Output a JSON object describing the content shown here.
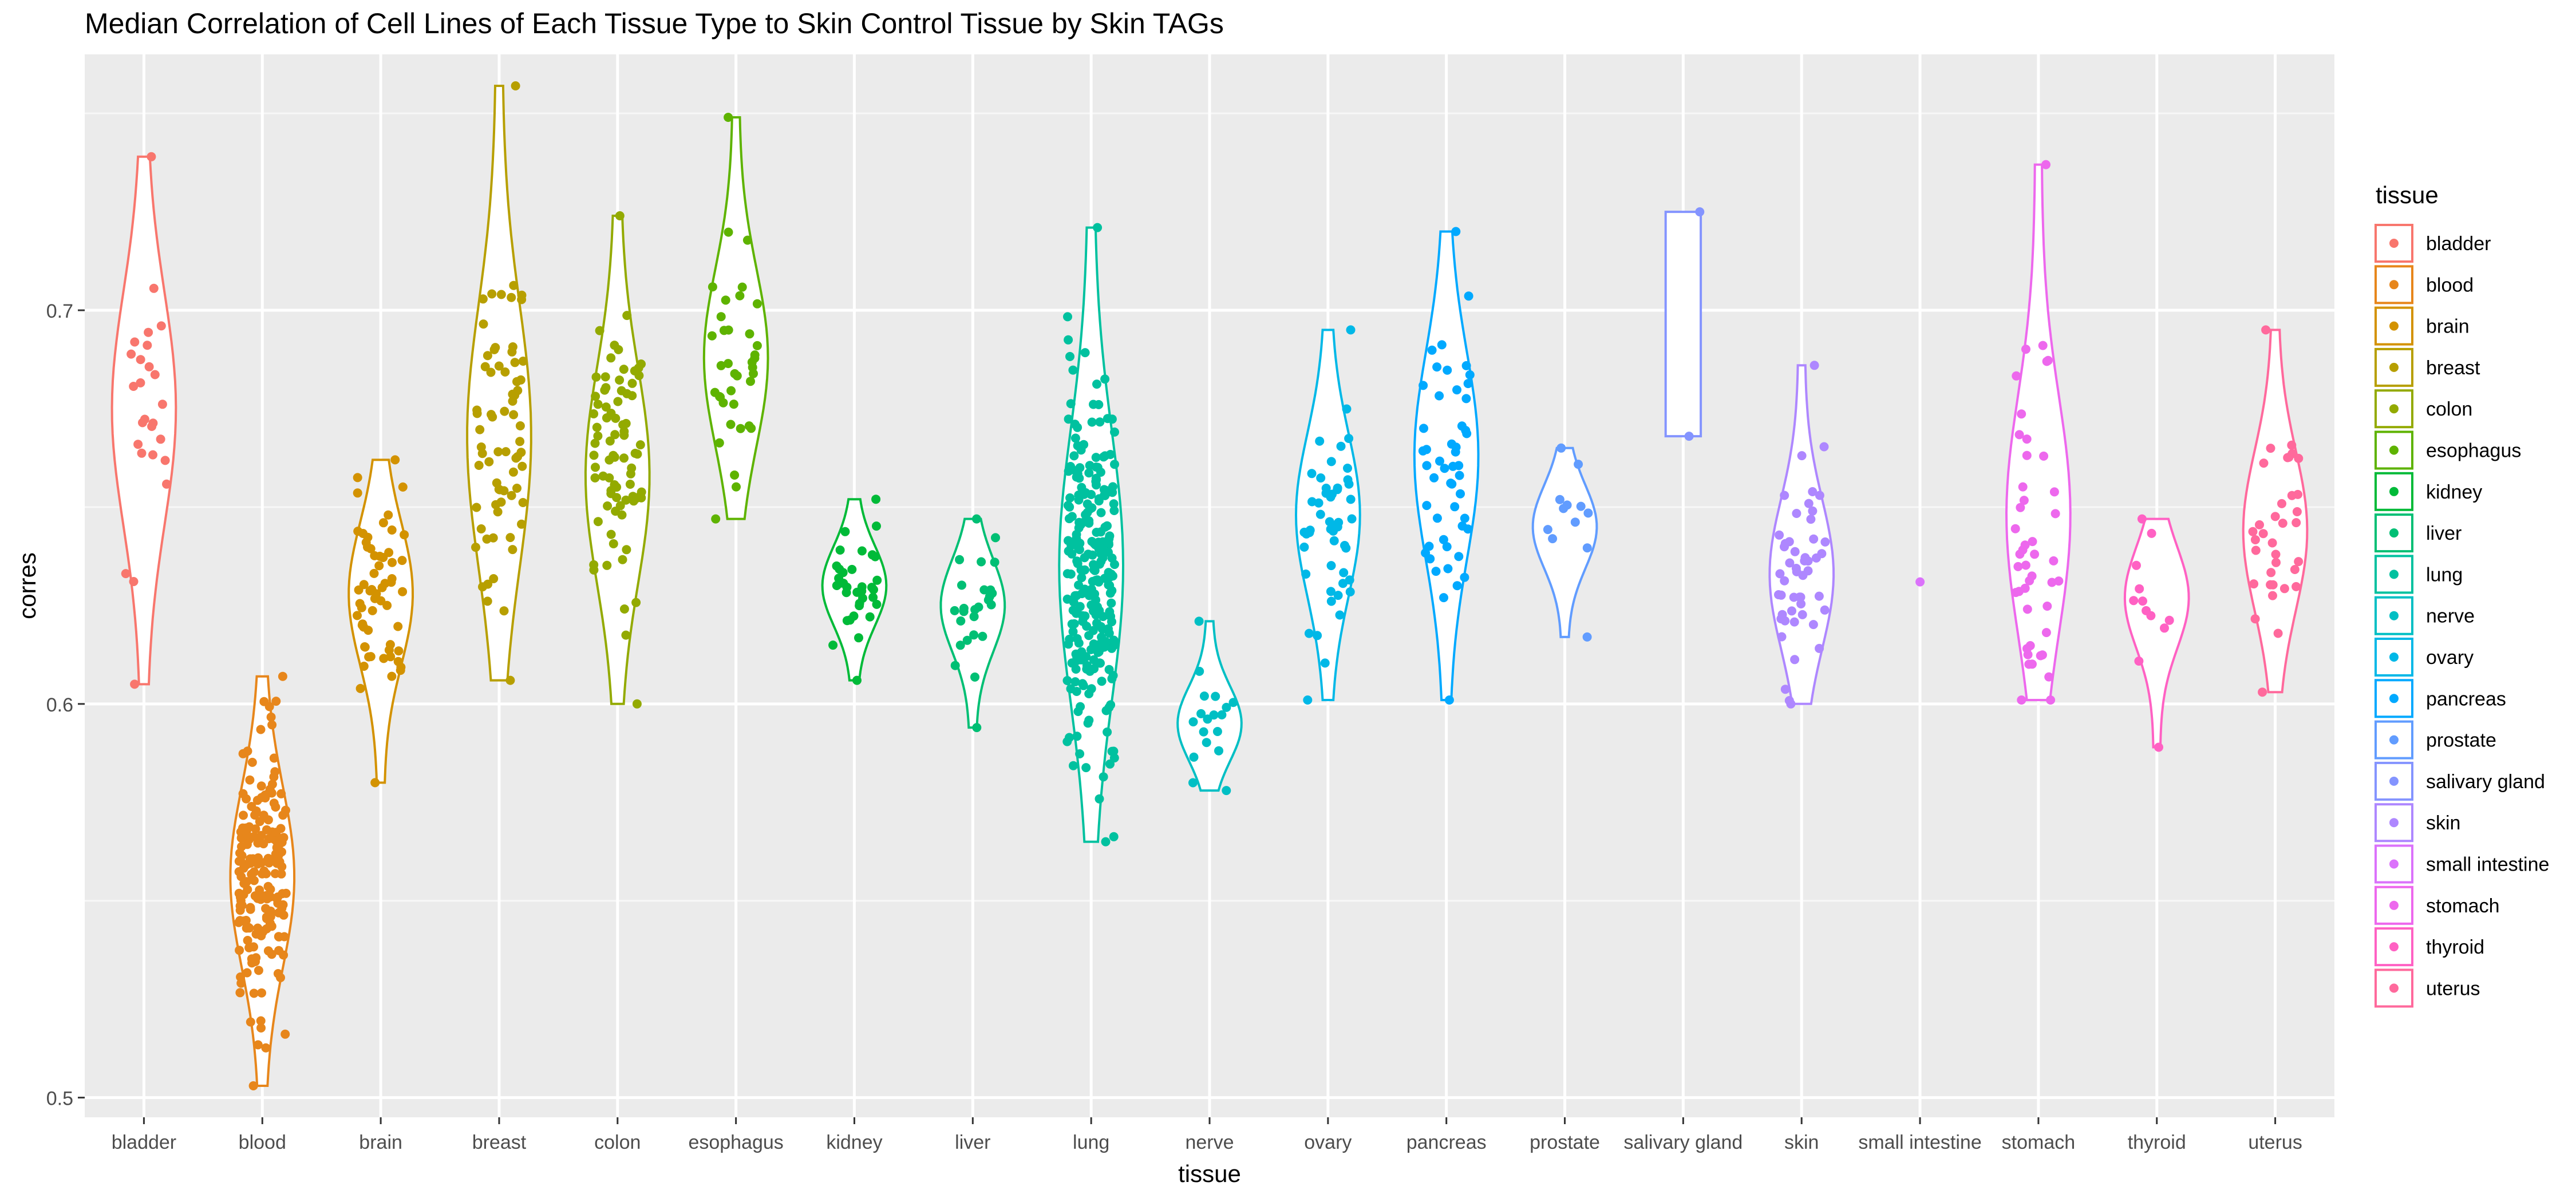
{
  "chart_data": {
    "type": "violin",
    "title": "Median Correlation of Cell Lines of Each Tissue Type to Skin Control Tissue by Skin TAGs",
    "xlabel": "tissue",
    "ylabel": "corres",
    "ylim": [
      0.495,
      0.765
    ],
    "yticks": [
      0.5,
      0.6,
      0.7
    ],
    "ytick_labels": [
      "0.5",
      "0.6",
      "0.7"
    ],
    "grid": true,
    "legend": {
      "title": "tissue",
      "position": "right"
    },
    "categories": [
      "bladder",
      "blood",
      "brain",
      "breast",
      "colon",
      "esophagus",
      "kidney",
      "liver",
      "lung",
      "nerve",
      "ovary",
      "pancreas",
      "prostate",
      "salivary gland",
      "skin",
      "small intestine",
      "stomach",
      "thyroid",
      "uterus"
    ],
    "series": [
      {
        "name": "bladder",
        "color": "#F8766D",
        "min": 0.605,
        "max": 0.739,
        "median": 0.675,
        "n": 26
      },
      {
        "name": "blood",
        "color": "#E7861B",
        "min": 0.503,
        "max": 0.607,
        "median": 0.556,
        "n": 190
      },
      {
        "name": "brain",
        "color": "#D39200",
        "min": 0.58,
        "max": 0.662,
        "median": 0.628,
        "n": 60
      },
      {
        "name": "breast",
        "color": "#B79F00",
        "min": 0.606,
        "max": 0.757,
        "median": 0.668,
        "n": 70
      },
      {
        "name": "colon",
        "color": "#93AA00",
        "min": 0.6,
        "max": 0.724,
        "median": 0.658,
        "n": 80
      },
      {
        "name": "esophagus",
        "color": "#5EB300",
        "min": 0.647,
        "max": 0.749,
        "median": 0.688,
        "n": 38
      },
      {
        "name": "kidney",
        "color": "#00BA38",
        "min": 0.606,
        "max": 0.652,
        "median": 0.63,
        "n": 36
      },
      {
        "name": "liver",
        "color": "#00BF74",
        "min": 0.594,
        "max": 0.647,
        "median": 0.625,
        "n": 26
      },
      {
        "name": "lung",
        "color": "#00C19F",
        "min": 0.565,
        "max": 0.721,
        "median": 0.635,
        "n": 250
      },
      {
        "name": "nerve",
        "color": "#00BFC4",
        "min": 0.578,
        "max": 0.621,
        "median": 0.595,
        "n": 18
      },
      {
        "name": "ovary",
        "color": "#00B8E7",
        "min": 0.601,
        "max": 0.695,
        "median": 0.648,
        "n": 50
      },
      {
        "name": "pancreas",
        "color": "#00A9FF",
        "min": 0.601,
        "max": 0.72,
        "median": 0.663,
        "n": 50
      },
      {
        "name": "prostate",
        "color": "#619CFF",
        "min": 0.617,
        "max": 0.665,
        "median": 0.645,
        "n": 12
      },
      {
        "name": "salivary gland",
        "color": "#8494FF",
        "min": 0.668,
        "max": 0.725,
        "median": 0.697,
        "n": 2
      },
      {
        "name": "skin",
        "color": "#AE87FF",
        "min": 0.6,
        "max": 0.686,
        "median": 0.633,
        "n": 50
      },
      {
        "name": "small intestine",
        "color": "#DB72FB",
        "min": 0.631,
        "max": 0.631,
        "median": 0.631,
        "n": 1
      },
      {
        "name": "stomach",
        "color": "#ED68ED",
        "min": 0.601,
        "max": 0.737,
        "median": 0.648,
        "n": 45
      },
      {
        "name": "thyroid",
        "color": "#FF61C3",
        "min": 0.589,
        "max": 0.647,
        "median": 0.627,
        "n": 12
      },
      {
        "name": "uterus",
        "color": "#FF699C",
        "min": 0.603,
        "max": 0.695,
        "median": 0.644,
        "n": 35
      }
    ]
  }
}
